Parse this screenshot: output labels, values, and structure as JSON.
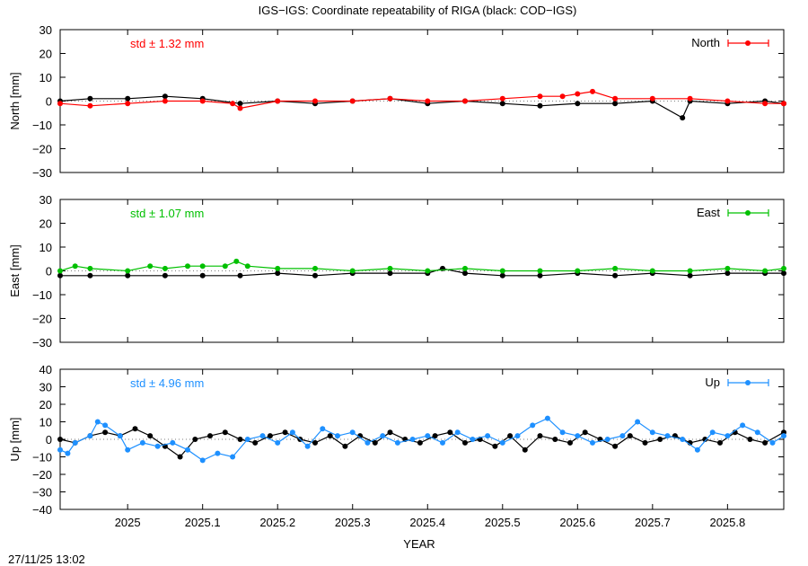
{
  "figure": {
    "title": "IGS−IGS: Coordinate repeatability of RIGA (black: COD−IGS)",
    "xlabel": "YEAR",
    "timestamp": "27/11/25 13:02"
  },
  "chart_data": [
    {
      "type": "line",
      "panel": "north",
      "ylabel": "North [mm]",
      "legend": "North",
      "legend_placement": "top-right",
      "std_label": "std ± 1.32 mm",
      "color": "#ff0000",
      "reference_color": "#000000",
      "xlim": [
        2024.91,
        2025.875
      ],
      "ylim": [
        -30,
        30
      ],
      "yticks": [
        30,
        20,
        10,
        0,
        -10,
        -20,
        -30
      ],
      "ytick_labels": [
        "30",
        "20",
        "10",
        "0",
        "−10",
        "−20",
        "−30"
      ],
      "series": [
        {
          "x": [
            2024.91,
            2024.95,
            2025.0,
            2025.05,
            2025.1,
            2025.14,
            2025.15,
            2025.2,
            2025.25,
            2025.3,
            2025.35,
            2025.4,
            2025.45,
            2025.5,
            2025.55,
            2025.58,
            2025.6,
            2025.62,
            2025.65,
            2025.7,
            2025.75,
            2025.8,
            2025.85,
            2025.875
          ],
          "y": [
            -1,
            -2,
            -1,
            0,
            0,
            -1,
            -3,
            0,
            0,
            0,
            1,
            0,
            0,
            1,
            2,
            2,
            3,
            4,
            1,
            1,
            1,
            0,
            -1,
            -1
          ]
        },
        {
          "x": [
            2024.91,
            2024.95,
            2025.0,
            2025.05,
            2025.1,
            2025.15,
            2025.2,
            2025.25,
            2025.3,
            2025.35,
            2025.4,
            2025.45,
            2025.5,
            2025.55,
            2025.6,
            2025.65,
            2025.7,
            2025.74,
            2025.75,
            2025.8,
            2025.85,
            2025.875
          ],
          "y": [
            0,
            1,
            1,
            2,
            1,
            -1,
            0,
            -1,
            0,
            1,
            -1,
            0,
            -1,
            -2,
            -1,
            -1,
            0,
            -7,
            0,
            -1,
            0,
            -1
          ]
        }
      ]
    },
    {
      "type": "line",
      "panel": "east",
      "ylabel": "East [mm]",
      "legend": "East",
      "legend_placement": "top-right",
      "std_label": "std ± 1.07 mm",
      "color": "#00c000",
      "reference_color": "#000000",
      "xlim": [
        2024.91,
        2025.875
      ],
      "ylim": [
        -30,
        30
      ],
      "yticks": [
        30,
        20,
        10,
        0,
        -10,
        -20,
        -30
      ],
      "ytick_labels": [
        "30",
        "20",
        "10",
        "0",
        "−10",
        "−20",
        "−30"
      ],
      "series": [
        {
          "x": [
            2024.91,
            2024.93,
            2024.95,
            2025.0,
            2025.03,
            2025.05,
            2025.08,
            2025.1,
            2025.13,
            2025.145,
            2025.16,
            2025.2,
            2025.25,
            2025.3,
            2025.35,
            2025.4,
            2025.45,
            2025.5,
            2025.55,
            2025.6,
            2025.65,
            2025.7,
            2025.75,
            2025.8,
            2025.85,
            2025.875
          ],
          "y": [
            0,
            2,
            1,
            0,
            2,
            1,
            2,
            2,
            2,
            4,
            2,
            1,
            1,
            0,
            1,
            0,
            1,
            0,
            0,
            0,
            1,
            0,
            0,
            1,
            0,
            1
          ]
        },
        {
          "x": [
            2024.91,
            2024.95,
            2025.0,
            2025.05,
            2025.1,
            2025.15,
            2025.2,
            2025.25,
            2025.3,
            2025.35,
            2025.4,
            2025.42,
            2025.45,
            2025.5,
            2025.55,
            2025.6,
            2025.65,
            2025.7,
            2025.75,
            2025.8,
            2025.85,
            2025.875
          ],
          "y": [
            -2,
            -2,
            -2,
            -2,
            -2,
            -2,
            -1,
            -2,
            -1,
            -1,
            -1,
            1,
            -1,
            -2,
            -2,
            -1,
            -2,
            -1,
            -2,
            -1,
            -1,
            -1
          ]
        }
      ]
    },
    {
      "type": "line",
      "panel": "up",
      "ylabel": "Up [mm]",
      "legend": "Up",
      "legend_placement": "top-right",
      "std_label": "std ± 4.96 mm",
      "color": "#1e90ff",
      "reference_color": "#000000",
      "xlim": [
        2024.91,
        2025.875
      ],
      "ylim": [
        -40,
        40
      ],
      "yticks": [
        40,
        30,
        20,
        10,
        0,
        -10,
        -20,
        -30,
        -40
      ],
      "ytick_labels": [
        "40",
        "30",
        "20",
        "10",
        "0",
        "−10",
        "−20",
        "−30",
        "−40"
      ],
      "xticks": [
        2025,
        2025.1,
        2025.2,
        2025.3,
        2025.4,
        2025.5,
        2025.6,
        2025.7,
        2025.8
      ],
      "xtick_labels": [
        "2025",
        "2025.1",
        "2025.2",
        "2025.3",
        "2025.4",
        "2025.5",
        "2025.6",
        "2025.7",
        "2025.8"
      ],
      "series": [
        {
          "x": [
            2024.91,
            2024.92,
            2024.93,
            2024.95,
            2024.96,
            2024.97,
            2024.99,
            2025.0,
            2025.02,
            2025.04,
            2025.06,
            2025.08,
            2025.1,
            2025.12,
            2025.14,
            2025.16,
            2025.18,
            2025.2,
            2025.22,
            2025.24,
            2025.26,
            2025.28,
            2025.3,
            2025.32,
            2025.34,
            2025.36,
            2025.38,
            2025.4,
            2025.42,
            2025.44,
            2025.46,
            2025.48,
            2025.5,
            2025.52,
            2025.54,
            2025.56,
            2025.58,
            2025.6,
            2025.62,
            2025.64,
            2025.66,
            2025.68,
            2025.7,
            2025.72,
            2025.74,
            2025.76,
            2025.78,
            2025.8,
            2025.82,
            2025.84,
            2025.86,
            2025.875
          ],
          "y": [
            -6,
            -8,
            -2,
            2,
            10,
            8,
            2,
            -6,
            -2,
            -4,
            -2,
            -6,
            -12,
            -8,
            -10,
            0,
            2,
            -2,
            4,
            -4,
            6,
            2,
            4,
            -2,
            2,
            -2,
            0,
            2,
            -2,
            4,
            0,
            2,
            -2,
            2,
            8,
            12,
            4,
            2,
            -2,
            0,
            2,
            10,
            4,
            2,
            0,
            -6,
            4,
            2,
            8,
            4,
            -2,
            2
          ]
        },
        {
          "x": [
            2024.91,
            2024.93,
            2024.95,
            2024.97,
            2024.99,
            2025.01,
            2025.03,
            2025.05,
            2025.07,
            2025.09,
            2025.11,
            2025.13,
            2025.15,
            2025.17,
            2025.19,
            2025.21,
            2025.23,
            2025.25,
            2025.27,
            2025.29,
            2025.31,
            2025.33,
            2025.35,
            2025.37,
            2025.39,
            2025.41,
            2025.43,
            2025.45,
            2025.47,
            2025.49,
            2025.51,
            2025.53,
            2025.55,
            2025.57,
            2025.59,
            2025.61,
            2025.63,
            2025.65,
            2025.67,
            2025.69,
            2025.71,
            2025.73,
            2025.75,
            2025.77,
            2025.79,
            2025.81,
            2025.83,
            2025.85,
            2025.875
          ],
          "y": [
            0,
            -2,
            2,
            4,
            2,
            6,
            2,
            -4,
            -10,
            0,
            2,
            4,
            0,
            -2,
            2,
            4,
            0,
            -2,
            2,
            -4,
            2,
            -2,
            4,
            0,
            -2,
            2,
            4,
            -2,
            0,
            -4,
            2,
            -6,
            2,
            0,
            -2,
            4,
            0,
            -4,
            2,
            -2,
            0,
            2,
            -2,
            0,
            -2,
            4,
            0,
            -2,
            4
          ]
        }
      ]
    }
  ]
}
